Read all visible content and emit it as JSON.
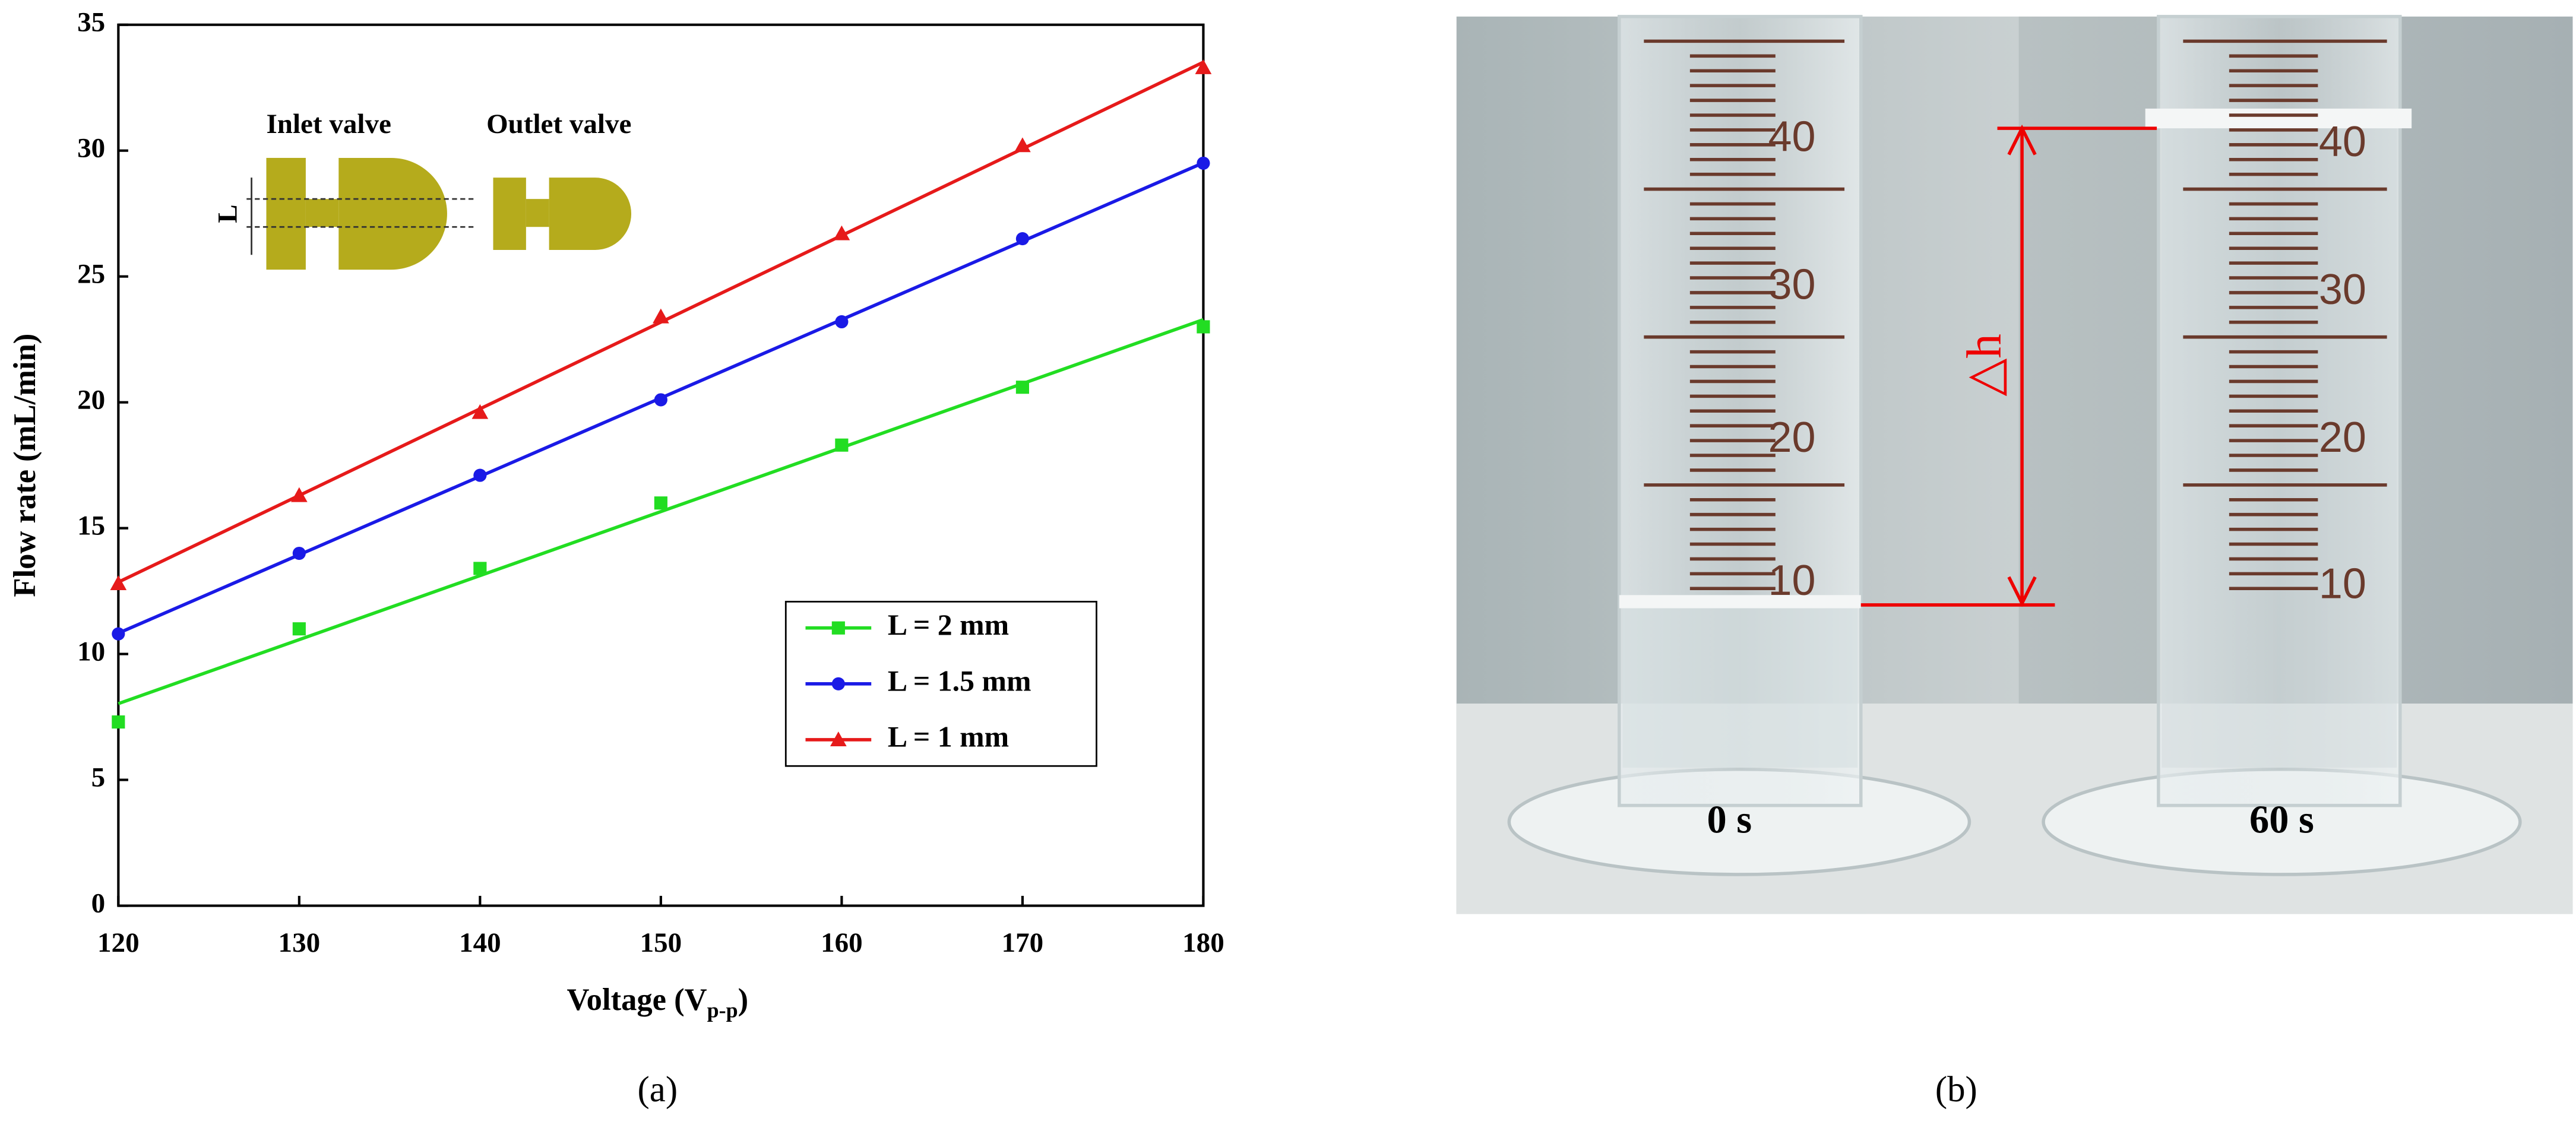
{
  "chart_data": {
    "type": "line",
    "x_label": "Voltage (V",
    "x_label_sub": "p-p",
    "x_label_end": ")",
    "y_label": "Flow rate (mL/min)",
    "x": [
      120,
      130,
      140,
      150,
      160,
      170,
      180
    ],
    "xlim": [
      120,
      180
    ],
    "xticks": [
      120,
      130,
      140,
      150,
      160,
      170,
      180
    ],
    "ylim": [
      0,
      35
    ],
    "yticks": [
      0,
      5,
      10,
      15,
      20,
      25,
      30,
      35
    ],
    "legend": "lower right",
    "fit": "linear",
    "series": [
      {
        "name": "L = 2 mm",
        "color": "#22dd22",
        "marker": "square",
        "values": [
          7.3,
          11.0,
          13.4,
          16.0,
          18.3,
          20.6,
          23.0
        ]
      },
      {
        "name": "L = 1.5 mm",
        "color": "#1a1ae6",
        "marker": "circle",
        "values": [
          10.8,
          14.0,
          17.1,
          20.1,
          23.2,
          26.5,
          29.5
        ]
      },
      {
        "name": "L = 1 mm",
        "color": "#e61a1a",
        "marker": "triangle",
        "values": [
          12.8,
          16.3,
          19.6,
          23.4,
          26.7,
          30.2,
          33.3
        ]
      }
    ],
    "inset": {
      "inlet": "Inlet valve",
      "outlet": "Outlet valve",
      "dimension": "L"
    },
    "panel_label": "(a)"
  },
  "photo": {
    "panel_label": "(b)",
    "left_scale": [
      "40",
      "30",
      "20",
      "10"
    ],
    "right_scale": [
      "40",
      "30",
      "20",
      "10"
    ],
    "left_time": "0 s",
    "right_time": "60 s",
    "height_label": "△h"
  }
}
